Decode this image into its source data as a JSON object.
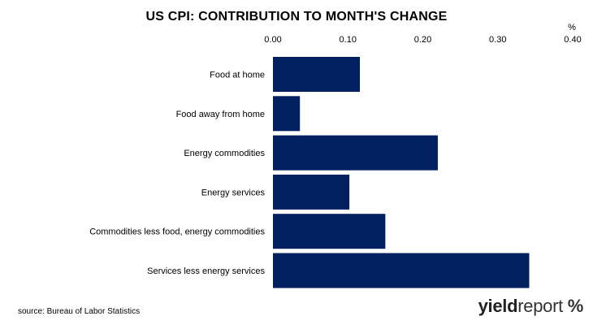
{
  "chart_data": {
    "type": "bar",
    "orientation": "horizontal",
    "title": "US CPI: CONTRIBUTION TO MONTH'S CHANGE",
    "unit_label": "%",
    "categories": [
      "Food at home",
      "Food away from home",
      "Energy commodities",
      "Energy services",
      "Commodities less food, energy commodities",
      "Services less energy services"
    ],
    "values": [
      0.116,
      0.036,
      0.22,
      0.102,
      0.15,
      0.342
    ],
    "xlim": [
      0,
      0.4
    ],
    "ticks": [
      0,
      0.1,
      0.2,
      0.3,
      0.4
    ],
    "tick_labels": [
      "0.00",
      "0.10",
      "0.20",
      "0.30",
      "0.40"
    ],
    "axis_position": "top",
    "grid": false,
    "legend": "none",
    "bar_color": "#002060"
  },
  "source_note": "source: Bureau of Labor Statistics",
  "logo": {
    "bold": "yield",
    "regular": "report",
    "symbol": "%"
  }
}
